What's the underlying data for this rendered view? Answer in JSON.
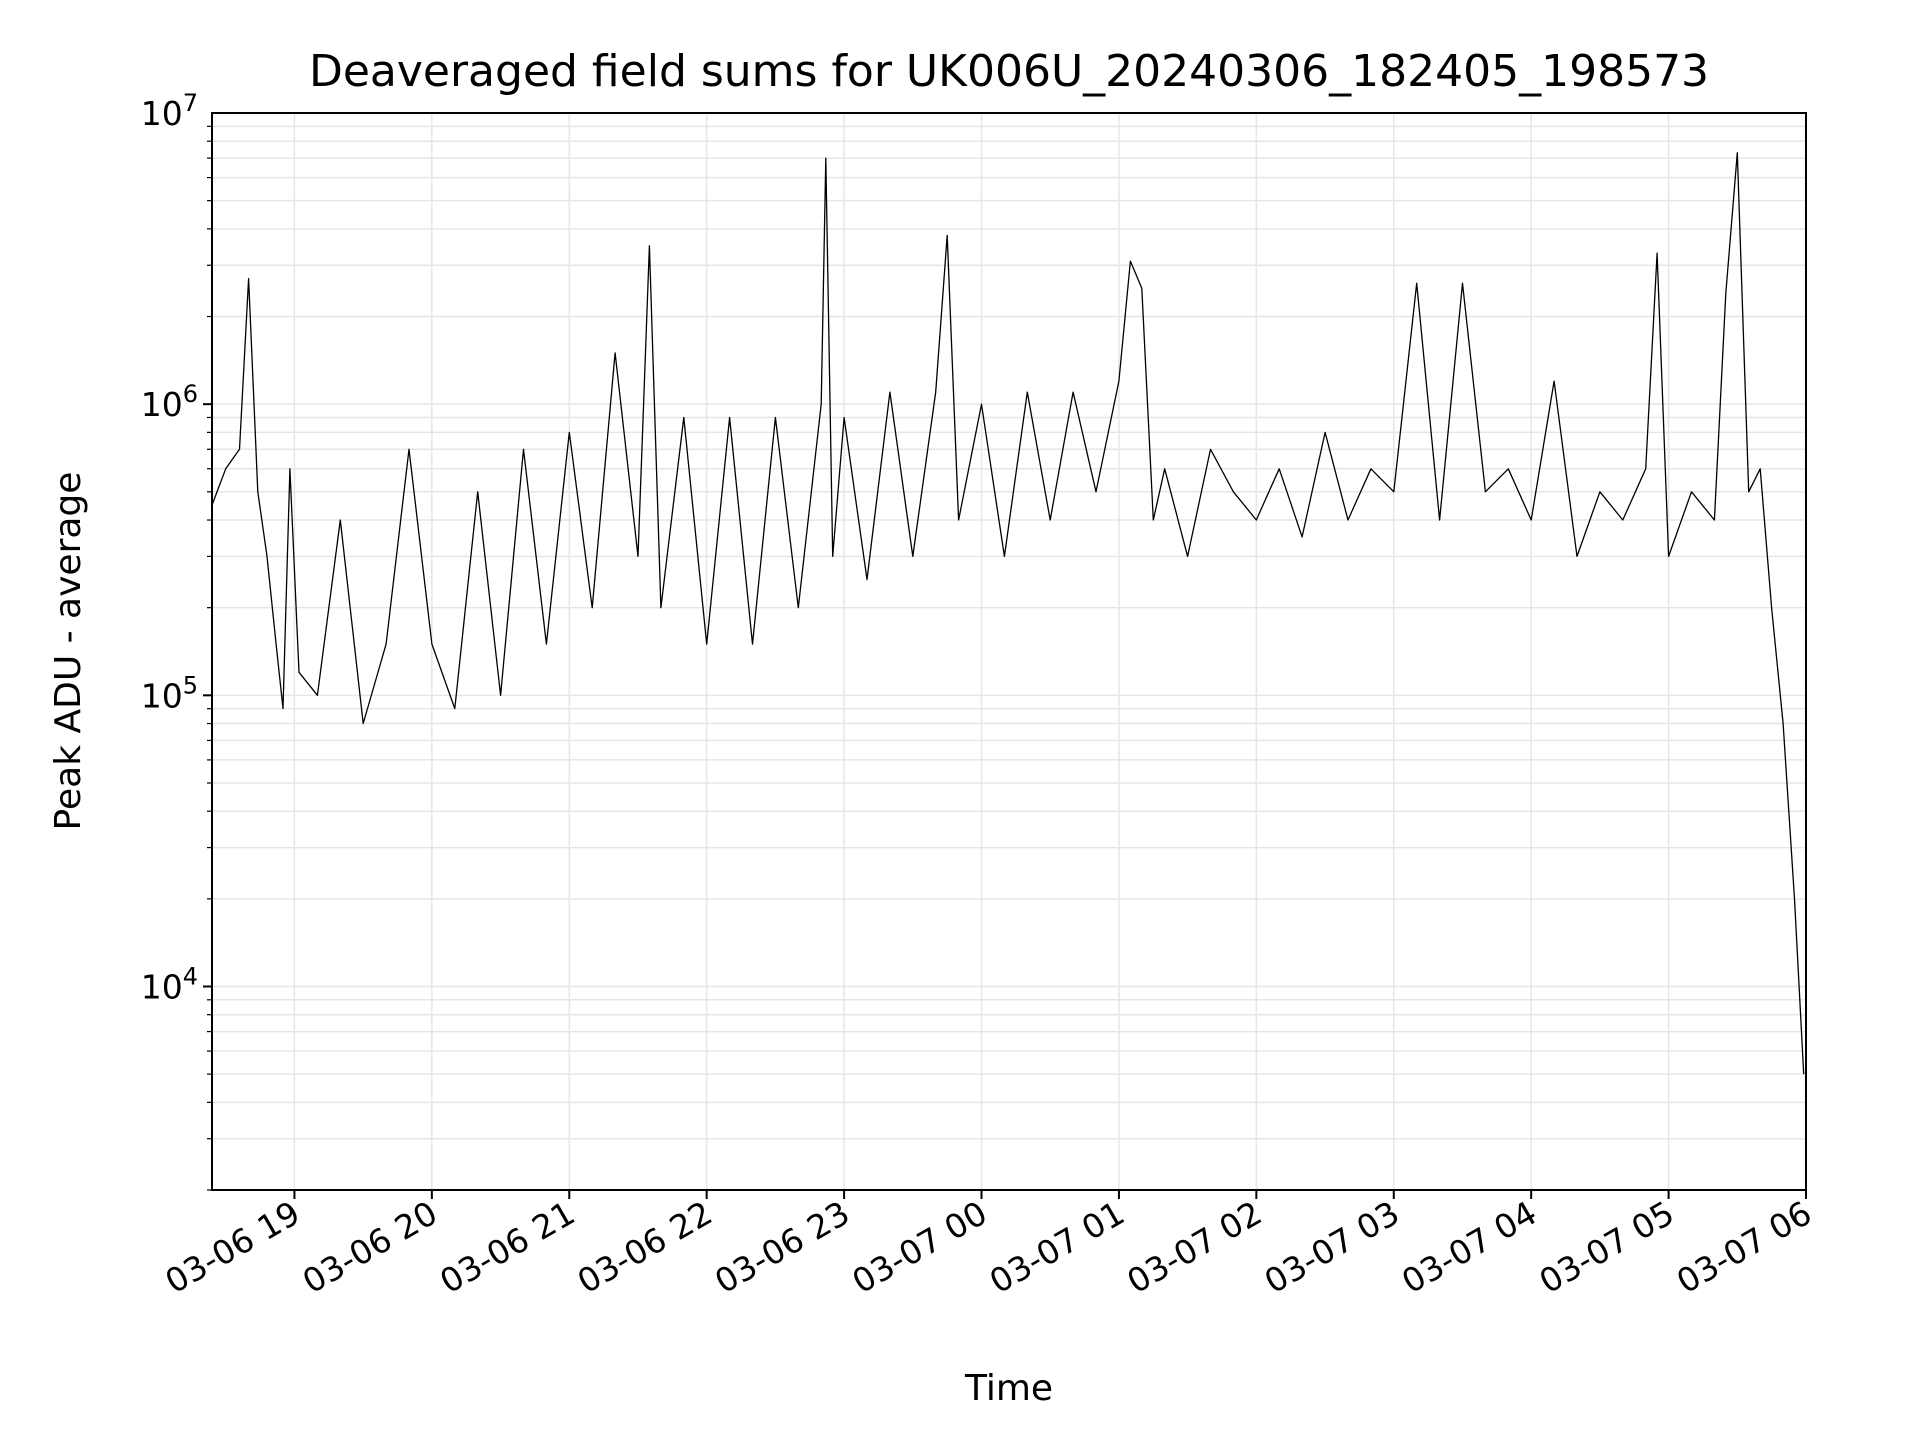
{
  "chart_data": {
    "type": "line",
    "title": "Deaveraged field sums for UK006U_20240306_182405_198573",
    "xlabel": "Time",
    "ylabel": "Peak ADU - average",
    "yscale": "log",
    "ylim": [
      2000,
      10000000
    ],
    "xlim": [
      "2024-03-06 18:24",
      "2024-03-07 06:00"
    ],
    "grid": true,
    "line_color": "#000000",
    "grid_color": "#e6e6e6",
    "x_tick_labels": [
      "03-06 19",
      "03-06 20",
      "03-06 21",
      "03-06 22",
      "03-06 23",
      "03-07 00",
      "03-07 01",
      "03-07 02",
      "03-07 03",
      "03-07 04",
      "03-07 05",
      "03-07 06"
    ],
    "x_tick_times": [
      "2024-03-06 19:00",
      "2024-03-06 20:00",
      "2024-03-06 21:00",
      "2024-03-06 22:00",
      "2024-03-06 23:00",
      "2024-03-07 00:00",
      "2024-03-07 01:00",
      "2024-03-07 02:00",
      "2024-03-07 03:00",
      "2024-03-07 04:00",
      "2024-03-07 05:00",
      "2024-03-07 06:00"
    ],
    "y_ticks": [
      {
        "value": 10000,
        "base": "10",
        "exp": "4"
      },
      {
        "value": 100000,
        "base": "10",
        "exp": "5"
      },
      {
        "value": 1000000,
        "base": "10",
        "exp": "6"
      },
      {
        "value": 10000000,
        "base": "10",
        "exp": "7"
      }
    ],
    "series": [
      {
        "x": [
          "2024-03-06 18:24",
          "2024-03-06 18:30",
          "2024-03-06 18:36",
          "2024-03-06 18:40",
          "2024-03-06 18:44",
          "2024-03-06 18:48",
          "2024-03-06 18:52",
          "2024-03-06 18:55",
          "2024-03-06 18:58",
          "2024-03-06 19:02",
          "2024-03-06 19:10",
          "2024-03-06 19:20",
          "2024-03-06 19:30",
          "2024-03-06 19:40",
          "2024-03-06 19:50",
          "2024-03-06 20:00",
          "2024-03-06 20:10",
          "2024-03-06 20:20",
          "2024-03-06 20:30",
          "2024-03-06 20:40",
          "2024-03-06 20:50",
          "2024-03-06 21:00",
          "2024-03-06 21:10",
          "2024-03-06 21:20",
          "2024-03-06 21:30",
          "2024-03-06 21:35",
          "2024-03-06 21:40",
          "2024-03-06 21:50",
          "2024-03-06 22:00",
          "2024-03-06 22:10",
          "2024-03-06 22:20",
          "2024-03-06 22:30",
          "2024-03-06 22:40",
          "2024-03-06 22:50",
          "2024-03-06 22:52",
          "2024-03-06 22:55",
          "2024-03-06 23:00",
          "2024-03-06 23:10",
          "2024-03-06 23:20",
          "2024-03-06 23:30",
          "2024-03-06 23:40",
          "2024-03-06 23:45",
          "2024-03-06 23:50",
          "2024-03-07 00:00",
          "2024-03-07 00:10",
          "2024-03-07 00:20",
          "2024-03-07 00:30",
          "2024-03-07 00:40",
          "2024-03-07 00:50",
          "2024-03-07 01:00",
          "2024-03-07 01:05",
          "2024-03-07 01:10",
          "2024-03-07 01:15",
          "2024-03-07 01:20",
          "2024-03-07 01:30",
          "2024-03-07 01:40",
          "2024-03-07 01:50",
          "2024-03-07 02:00",
          "2024-03-07 02:10",
          "2024-03-07 02:20",
          "2024-03-07 02:30",
          "2024-03-07 02:40",
          "2024-03-07 02:50",
          "2024-03-07 03:00",
          "2024-03-07 03:10",
          "2024-03-07 03:20",
          "2024-03-07 03:30",
          "2024-03-07 03:40",
          "2024-03-07 03:50",
          "2024-03-07 04:00",
          "2024-03-07 04:10",
          "2024-03-07 04:20",
          "2024-03-07 04:30",
          "2024-03-07 04:40",
          "2024-03-07 04:50",
          "2024-03-07 04:55",
          "2024-03-07 05:00",
          "2024-03-07 05:10",
          "2024-03-07 05:20",
          "2024-03-07 05:25",
          "2024-03-07 05:30",
          "2024-03-07 05:35",
          "2024-03-07 05:40",
          "2024-03-07 05:45",
          "2024-03-07 05:50",
          "2024-03-07 05:55",
          "2024-03-07 05:59"
        ],
        "y": [
          450000,
          600000,
          700000,
          2700000,
          500000,
          300000,
          150000,
          90000,
          600000,
          120000,
          100000,
          400000,
          80000,
          150000,
          700000,
          150000,
          90000,
          500000,
          100000,
          700000,
          150000,
          800000,
          200000,
          1500000,
          300000,
          3500000,
          200000,
          900000,
          150000,
          900000,
          150000,
          900000,
          200000,
          1000000,
          7000000,
          300000,
          900000,
          250000,
          1100000,
          300000,
          1100000,
          3800000,
          400000,
          1000000,
          300000,
          1100000,
          400000,
          1100000,
          500000,
          1200000,
          3100000,
          2500000,
          400000,
          600000,
          300000,
          700000,
          500000,
          400000,
          600000,
          350000,
          800000,
          400000,
          600000,
          500000,
          2600000,
          400000,
          2600000,
          500000,
          600000,
          400000,
          1200000,
          300000,
          500000,
          400000,
          600000,
          3300000,
          300000,
          500000,
          400000,
          2400000,
          7300000,
          500000,
          600000,
          200000,
          80000,
          20000,
          5000
        ]
      }
    ]
  }
}
